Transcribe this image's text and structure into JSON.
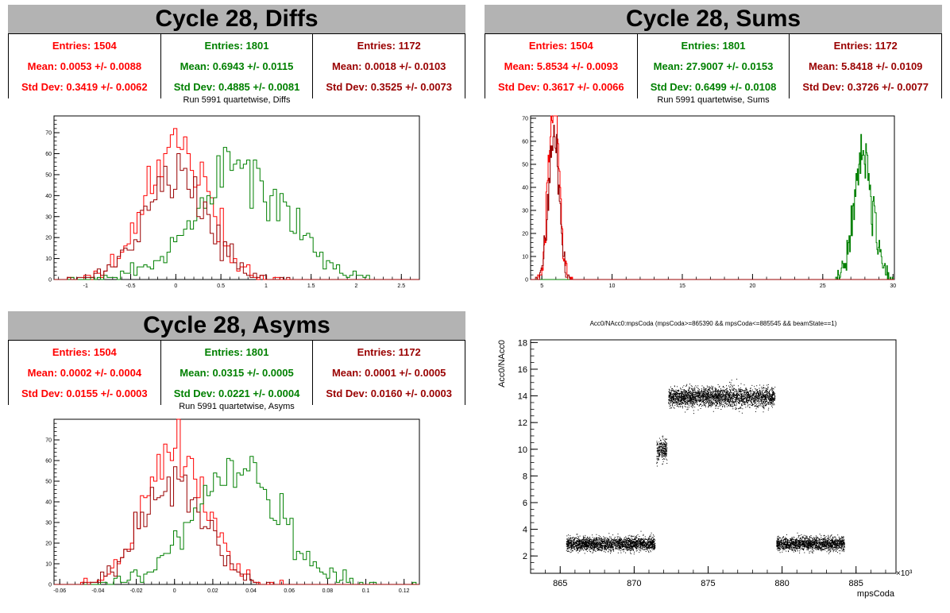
{
  "colors": {
    "series1": "#ff0000",
    "series2": "#008000",
    "series3": "#990000",
    "title_bg": "#b3b3b3"
  },
  "diffs": {
    "title": "Cycle 28, Diffs",
    "subtitle": "Run 5991 quartetwise, Diffs",
    "stats": [
      {
        "entries": "Entries: 1504",
        "mean": "Mean: 0.0053 +/- 0.0088",
        "stddev": "Std Dev: 0.3419 +/- 0.0062"
      },
      {
        "entries": "Entries: 1801",
        "mean": "Mean: 0.6943 +/- 0.0115",
        "stddev": "Std Dev: 0.4885 +/- 0.0081"
      },
      {
        "entries": "Entries: 1172",
        "mean": "Mean: 0.0018 +/- 0.0103",
        "stddev": "Std Dev: 0.3525 +/- 0.0073"
      }
    ]
  },
  "sums": {
    "title": "Cycle 28, Sums",
    "subtitle": "Run 5991 quartetwise, Sums",
    "stats": [
      {
        "entries": "Entries: 1504",
        "mean": "Mean: 5.8534 +/- 0.0093",
        "stddev": "Std Dev: 0.3617 +/- 0.0066"
      },
      {
        "entries": "Entries: 1801",
        "mean": "Mean: 27.9007 +/- 0.0153",
        "stddev": "Std Dev: 0.6499 +/- 0.0108"
      },
      {
        "entries": "Entries: 1172",
        "mean": "Mean: 5.8418 +/- 0.0109",
        "stddev": "Std Dev: 0.3726 +/- 0.0077"
      }
    ]
  },
  "asyms": {
    "title": "Cycle 28, Asyms",
    "subtitle": "Run 5991 quartetwise, Asyms",
    "stats": [
      {
        "entries": "Entries: 1504",
        "mean": "Mean: 0.0002 +/- 0.0004",
        "stddev": "Std Dev: 0.0155 +/- 0.0003"
      },
      {
        "entries": "Entries: 1801",
        "mean": "Mean: 0.0315 +/- 0.0005",
        "stddev": "Std Dev: 0.0221 +/- 0.0004"
      },
      {
        "entries": "Entries: 1172",
        "mean": "Mean: 0.0001 +/- 0.0005",
        "stddev": "Std Dev: 0.0160 +/- 0.0003"
      }
    ]
  },
  "scatter": {
    "title": "Acc0/NAcc0:mpsCoda (mpsCoda>=865390 && mpsCoda<=885545 && beamState==1)",
    "ylabel": "Acc0/NAcc0",
    "xlabel": "mpsCoda",
    "exponent": "×10³"
  },
  "chart_data": [
    {
      "type": "bar",
      "name": "Diffs",
      "xlim": [
        -1.35,
        2.7
      ],
      "ylim": [
        0,
        78
      ],
      "xticks": [
        -1,
        -0.5,
        0,
        0.5,
        1,
        1.5,
        2,
        2.5
      ],
      "yticks": [
        0,
        10,
        20,
        30,
        40,
        50,
        60,
        70
      ],
      "series": [
        {
          "mean": 0.0053,
          "std": 0.3419,
          "entries": 1504,
          "color": "#ff0000"
        },
        {
          "mean": 0.6943,
          "std": 0.4885,
          "entries": 1801,
          "color": "#008000"
        },
        {
          "mean": 0.0018,
          "std": 0.3525,
          "entries": 1172,
          "color": "#990000"
        }
      ]
    },
    {
      "type": "bar",
      "name": "Sums",
      "xlim": [
        4.2,
        30.1
      ],
      "ylim": [
        0,
        71
      ],
      "xticks": [
        5,
        10,
        15,
        20,
        25,
        30
      ],
      "yticks": [
        0,
        10,
        20,
        30,
        40,
        50,
        60,
        70
      ],
      "series": [
        {
          "mean": 5.8534,
          "std": 0.3617,
          "entries": 1504,
          "color": "#ff0000"
        },
        {
          "mean": 27.9007,
          "std": 0.6499,
          "entries": 1801,
          "color": "#008000"
        },
        {
          "mean": 5.8418,
          "std": 0.3726,
          "entries": 1172,
          "color": "#990000"
        }
      ]
    },
    {
      "type": "bar",
      "name": "Asyms",
      "xlim": [
        -0.063,
        0.128
      ],
      "ylim": [
        0,
        80
      ],
      "xticks": [
        -0.06,
        -0.04,
        -0.02,
        0,
        0.02,
        0.04,
        0.06,
        0.08,
        0.1,
        0.12
      ],
      "yticks": [
        0,
        10,
        20,
        30,
        40,
        50,
        60,
        70
      ],
      "series": [
        {
          "mean": 0.0002,
          "std": 0.0155,
          "entries": 1504,
          "color": "#ff0000"
        },
        {
          "mean": 0.0315,
          "std": 0.0221,
          "entries": 1801,
          "color": "#008000"
        },
        {
          "mean": 0.0001,
          "std": 0.016,
          "entries": 1172,
          "color": "#990000"
        }
      ]
    },
    {
      "type": "scatter",
      "name": "Acc0/NAcc0 vs mpsCoda",
      "xlim": [
        863.0,
        887.7
      ],
      "ylim": [
        0.7,
        18.2
      ],
      "xticks": [
        865,
        870,
        875,
        880,
        885
      ],
      "yticks": [
        2,
        4,
        6,
        8,
        10,
        12,
        14,
        16,
        18
      ],
      "clusters": [
        {
          "x": [
            865.4,
            871.4
          ],
          "y_center": 2.9,
          "y_spread": 0.45
        },
        {
          "x": [
            871.5,
            872.2
          ],
          "y_center": 9.9,
          "y_spread": 0.7
        },
        {
          "x": [
            872.3,
            879.5
          ],
          "y_center": 13.9,
          "y_spread": 0.65
        },
        {
          "x": [
            879.6,
            884.2
          ],
          "y_center": 2.9,
          "y_spread": 0.45
        }
      ]
    }
  ]
}
